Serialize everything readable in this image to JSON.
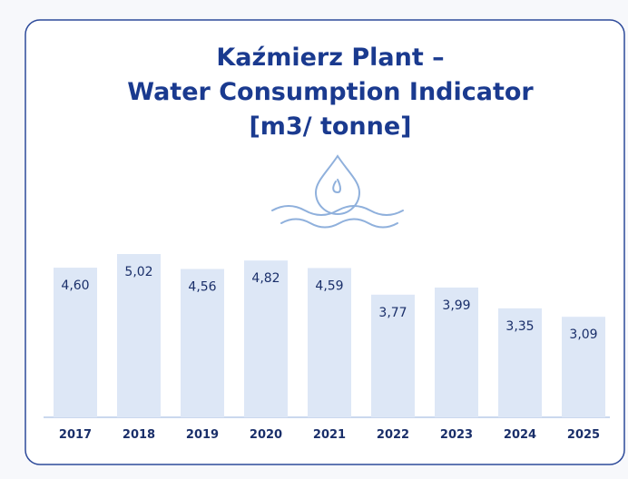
{
  "chart_data": {
    "type": "bar",
    "title": [
      "Kaźmierz Plant –",
      "Water Consumption Indicator",
      "[m3/ tonne]"
    ],
    "categories": [
      "2017",
      "2018",
      "2019",
      "2020",
      "2021",
      "2022",
      "2023",
      "2024",
      "2025"
    ],
    "values": [
      4.6,
      5.02,
      4.56,
      4.82,
      4.59,
      3.77,
      3.99,
      3.35,
      3.09
    ],
    "value_labels": [
      "4,60",
      "5,02",
      "4,56",
      "4,82",
      "4,59",
      "3,77",
      "3,99",
      "3,35",
      "3,09"
    ],
    "color": "#dde7f6"
  }
}
